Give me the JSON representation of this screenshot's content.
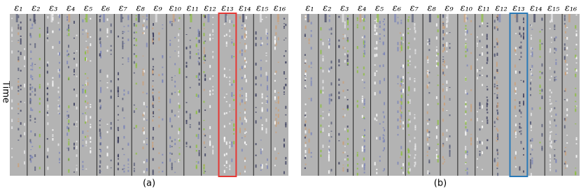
{
  "y_label": "Time",
  "panels": [
    {
      "label": "(a)",
      "columns": [
        "ε₁",
        "ε₂",
        "ε₃",
        "ε₄",
        "ε₅",
        "ε₆",
        "ε₇",
        "ε₈",
        "ε₉",
        "ε₁₀",
        "ε₁₁",
        "ε₁₂",
        "ε₁₃",
        "ε₁₄",
        "ε₁₅",
        "ε₁₆"
      ]
    },
    {
      "label": "(b)",
      "columns": [
        "ε₁",
        "ε₂",
        "ε₃",
        "ε₄",
        "ε₅",
        "ε₆",
        "ε₇",
        "ε₈",
        "ε₉",
        "ε₁₀",
        "ε₁₁",
        "ε₁₂",
        "ε₁₃",
        "ε₁₄",
        "ε₁₅",
        "ε₁₆"
      ]
    }
  ]
}
